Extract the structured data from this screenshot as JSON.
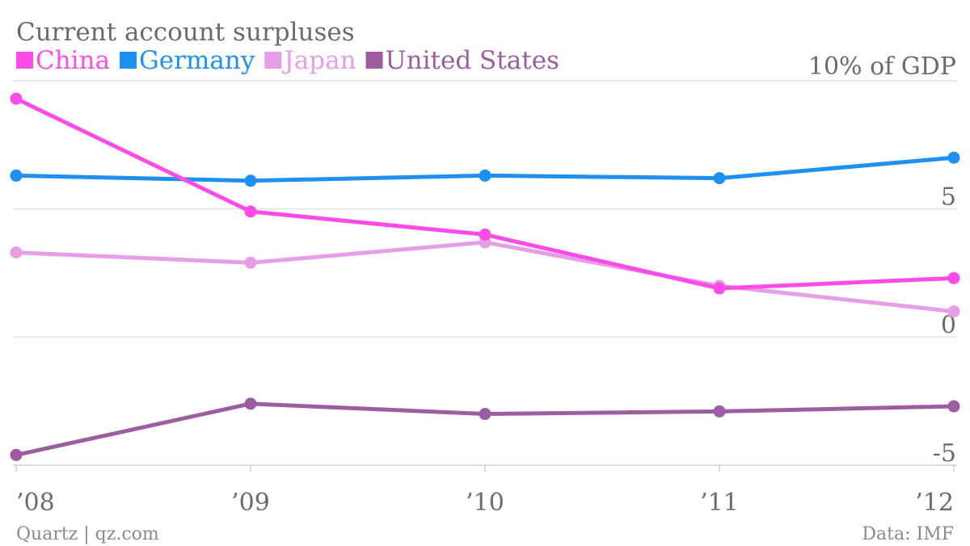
{
  "chart_data": {
    "type": "line",
    "title": "Current account surpluses",
    "y_unit_label": "10% of GDP",
    "categories": [
      "’08",
      "’09",
      "’10",
      "’11",
      "’12"
    ],
    "series": [
      {
        "name": "China",
        "color": "#ff4ce9",
        "values": [
          9.3,
          4.9,
          4.0,
          1.9,
          2.3
        ]
      },
      {
        "name": "Germany",
        "color": "#1e90ef",
        "values": [
          6.3,
          6.1,
          6.3,
          6.2,
          7.0
        ]
      },
      {
        "name": "Japan",
        "color": "#e69ee6",
        "values": [
          3.3,
          2.9,
          3.7,
          2.0,
          1.0
        ]
      },
      {
        "name": "United States",
        "color": "#9c5ea0",
        "values": [
          -4.6,
          -2.6,
          -3.0,
          -2.9,
          -2.7
        ]
      }
    ],
    "ylim": [
      -5,
      10
    ],
    "y_ticks": [
      {
        "value": 10,
        "label": ""
      },
      {
        "value": 5,
        "label": "5"
      },
      {
        "value": 0,
        "label": "0"
      },
      {
        "value": -5,
        "label": "-5"
      }
    ],
    "grid": true,
    "legend_position": "top-left"
  },
  "footer": {
    "source_left": "Quartz | qz.com",
    "source_right": "Data: IMF"
  }
}
